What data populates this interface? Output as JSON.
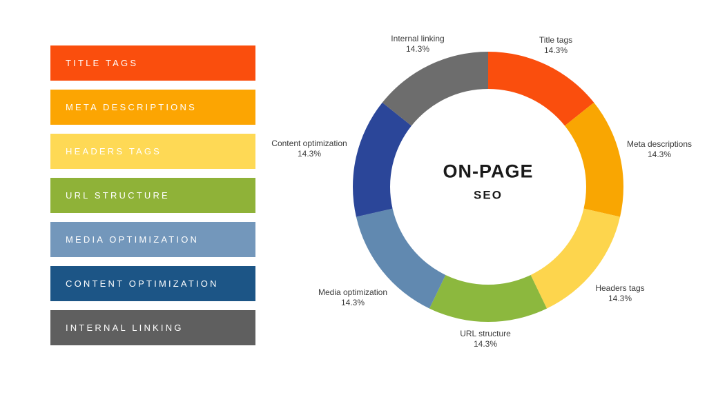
{
  "page": {
    "background_color": "#FFFFFF",
    "text_color": "#3B3B3B"
  },
  "legend": {
    "items": [
      {
        "label": "TITLE TAGS",
        "color": "#FA4E0D"
      },
      {
        "label": "META DESCRIPTIONS",
        "color": "#FCA502"
      },
      {
        "label": "HEADERS TAGS",
        "color": "#FED955"
      },
      {
        "label": "URL STRUCTURE",
        "color": "#8FB238"
      },
      {
        "label": "MEDIA OPTIMIZATION",
        "color": "#7397BB"
      },
      {
        "label": "CONTENT OPTIMIZATION",
        "color": "#1C5586"
      },
      {
        "label": "INTERNAL LINKING",
        "color": "#5F5F5F"
      }
    ]
  },
  "chart_data": {
    "type": "donut",
    "title": "ON-PAGE",
    "subtitle": "SEO",
    "categories": [
      "Title tags",
      "Meta descriptions",
      "Headers tags",
      "URL structure",
      "Media optimization",
      "Content optimization",
      "Internal linking"
    ],
    "values": [
      14.3,
      14.3,
      14.3,
      14.3,
      14.3,
      14.3,
      14.3
    ],
    "value_labels": [
      "14.3%",
      "14.3%",
      "14.3%",
      "14.3%",
      "14.3%",
      "14.3%",
      "14.3%"
    ],
    "colors": [
      "#FA4E0D",
      "#F9A602",
      "#FDD54D",
      "#8CB83E",
      "#6189B0",
      "#2B4699",
      "#6D6D6D"
    ],
    "start_angle_deg": 0,
    "direction": "clockwise",
    "legend_position": "left",
    "labels_outside": true
  }
}
